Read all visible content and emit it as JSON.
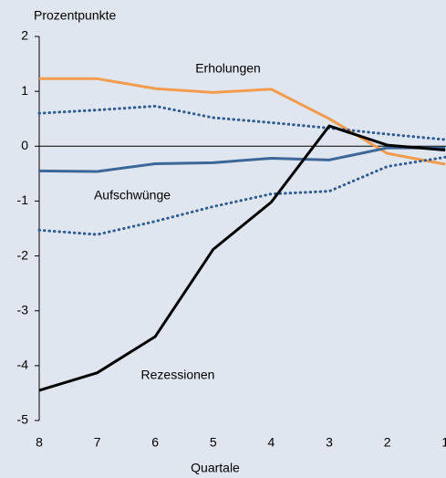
{
  "chart_data": {
    "type": "line",
    "y_label": "Prozentpunkte",
    "x_label": "Quartale",
    "categories": [
      "8",
      "7",
      "6",
      "5",
      "4",
      "3",
      "2",
      "1"
    ],
    "series": [
      {
        "name": "Erholungen",
        "color": "#f49c4e",
        "linestyle": "solid",
        "values": [
          1.23,
          1.23,
          1.05,
          0.98,
          1.04,
          0.5,
          -0.13,
          -0.33
        ]
      },
      {
        "color": "#2f5b8f",
        "linestyle": "dotted",
        "values": [
          0.6,
          0.66,
          0.73,
          0.52,
          0.43,
          0.33,
          0.22,
          0.12
        ]
      },
      {
        "name": "Aufschwünge",
        "color": "#3d6797",
        "linestyle": "solid",
        "values": [
          -0.45,
          -0.46,
          -0.32,
          -0.3,
          -0.22,
          -0.25,
          -0.03,
          -0.03
        ]
      },
      {
        "color": "#2f5b8f",
        "linestyle": "dotted",
        "values": [
          -1.53,
          -1.61,
          -1.37,
          -1.1,
          -0.87,
          -0.82,
          -0.37,
          -0.2
        ]
      },
      {
        "name": "Rezessionen",
        "color": "#000000",
        "linestyle": "solid",
        "values": [
          -4.45,
          -4.13,
          -3.47,
          -1.88,
          -1.02,
          0.37,
          0.02,
          -0.07
        ]
      }
    ],
    "ylim": [
      -5,
      2
    ],
    "yticks": [
      -5,
      -4,
      -3,
      -2,
      -1,
      0,
      1,
      2
    ],
    "grid": false
  }
}
